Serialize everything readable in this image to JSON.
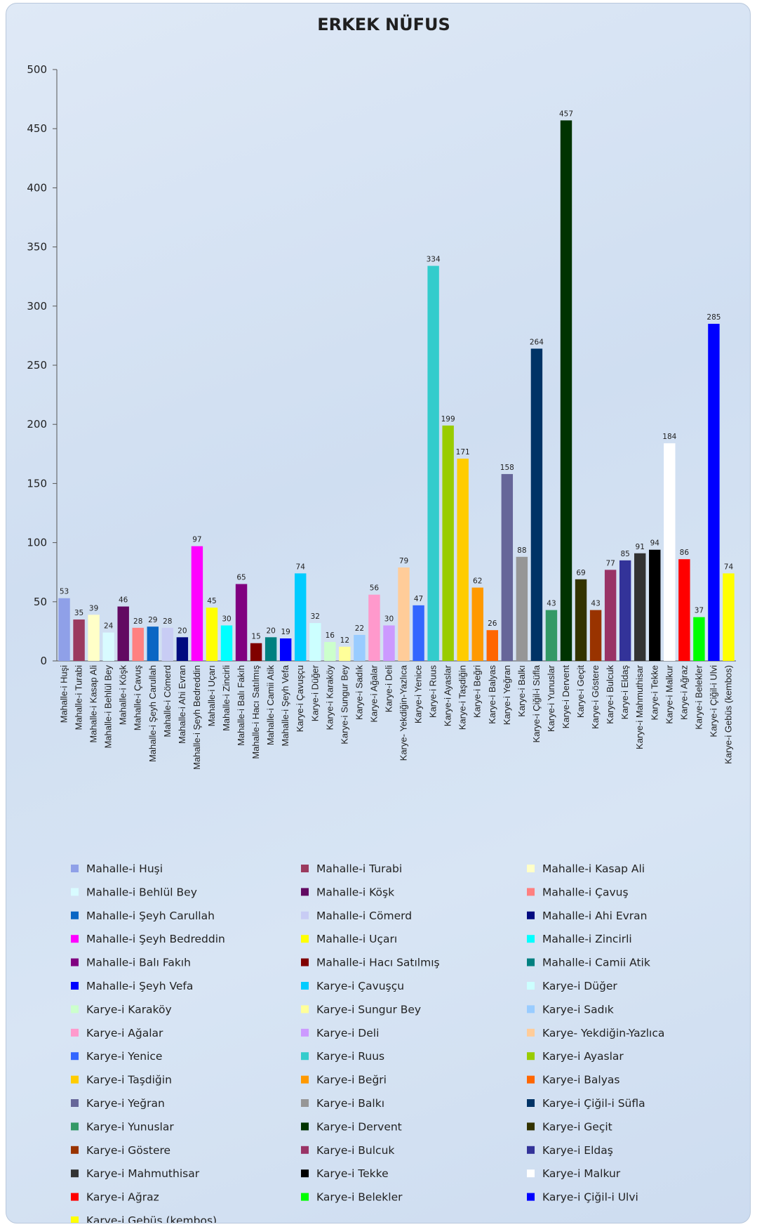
{
  "chart_data": {
    "type": "bar",
    "title": "ERKEK NÜFUS",
    "xlabel": "",
    "ylabel": "",
    "ylim": [
      0,
      500
    ],
    "yticks": [
      0,
      50,
      100,
      150,
      200,
      250,
      300,
      350,
      400,
      450,
      500
    ],
    "grid": false,
    "legend_position": "bottom",
    "categories": [
      "Mahalle-i Huşi",
      "Mahalle-i Turabi",
      "Mahalle-i Kasap Ali",
      "Mahalle-i Behlül Bey",
      "Mahalle-i Köşk",
      "Mahalle-i Çavuş",
      "Mahalle-i Şeyh Carullah",
      "Mahalle-i Cömerd",
      "Mahalle-i Ahi Evran",
      "Mahalle-i Şeyh Bedreddin",
      "Mahalle-i Uçarı",
      "Mahalle-i Zincirli",
      "Mahalle-i Balı Fakıh",
      "Mahalle-i Hacı Satılmış",
      "Mahalle-i Camii Atik",
      "Mahalle-i Şeyh Vefa",
      "Karye-i Çavuşçu",
      "Karye-i Düğer",
      "Karye-i Karaköy",
      "Karye-i Sungur Bey",
      "Karye-i Sadık",
      "Karye-i Ağalar",
      "Karye-i Deli",
      "Karye- Yekdiğin-Yazlıca",
      "Karye-i Yenice",
      "Karye-i Ruus",
      "Karye-i Ayaslar",
      "Karye-i Taşdiğin",
      "Karye-i Beğri",
      "Karye-i Balyas",
      "Karye-i Yeğran",
      "Karye-i Balkı",
      "Karye-i Çiğil-i Süfla",
      "Karye-i Yunuslar",
      "Karye-i Dervent",
      "Karye-i Geçit",
      "Karye-i Göstere",
      "Karye-i Bulcuk",
      "Karye-i Eldaş",
      "Karye-i Mahmuthisar",
      "Karye-i Tekke",
      "Karye-i Malkur",
      "Karye-i Ağraz",
      "Karye-i Belekler",
      "Karye-i Çiğil-i Ulvi",
      "Karye-i Gebüs (kembos)"
    ],
    "x_tick_labels": [
      "Mahalle-i Huşi",
      "Mahalle-i Turabi",
      "Mahalle-i Kasap Ali",
      "Mahalle-i Behlül Bey",
      "Mahalle-i Köşk",
      "Mahalle-i Çavuş",
      "Mahalle-i Şeyh Carullah",
      "Mahalle-i Cömerd",
      "Mahalle-i Ahi Evran",
      "Mahalle-i Şeyh Bedreddin",
      "Mahalle-i Uçarı",
      "Mahalle-i Zincirli",
      "Mahalle-i Balı Fakıh",
      "Mahalle-i Hacı Satılmış",
      "Mahalle-i Camii Atik",
      "Mahalle-i Şeyh Vefa",
      "Karye-i Çavuşçu",
      "Karye-i Düğer",
      "Karye-i Karaköy",
      "Karye-i Sungur Bey",
      "Karye-i Sadık",
      "Karye-i Ağalar",
      "Karye-i Deli",
      "Karye- Yekdiğin-Yazlıca",
      "Karye-i Yenice",
      "Karye-i Ruus",
      "Karye-i Ayaslar",
      "Karye-i Taşdiğin",
      "Karye-i Beğri",
      "Karye-i Balyas",
      "Karye-i Yeğran",
      "Karye-i Balkı",
      "Karye-i Çiğil-i Süfla",
      "Karye-i Yunuslar",
      "Karye-i Dervent",
      "Karye-i Geçit",
      "Karye-i Göstere",
      "Karye-i Bulcuk",
      "Karye-i Eldaş",
      "Karye-i Mahmuthisar",
      "Karye-i Tekke",
      "Karye-i Malkur",
      "Karye-i Ağraz",
      "Karye-i Belekler",
      "Karye-i Çiğil-i Ulvi",
      "Karye-i Gebüs (kembos)"
    ],
    "values": [
      53,
      35,
      39,
      24,
      46,
      28,
      29,
      28,
      20,
      97,
      45,
      30,
      65,
      15,
      20,
      19,
      74,
      32,
      16,
      12,
      22,
      56,
      30,
      79,
      47,
      334,
      199,
      171,
      62,
      26,
      158,
      88,
      264,
      43,
      457,
      69,
      43,
      77,
      85,
      91,
      94,
      184,
      86,
      37,
      285,
      74
    ],
    "data_labels": [
      "53",
      "35",
      "39",
      "24",
      "46",
      "28",
      "29",
      "28",
      "20",
      "97",
      "45",
      "30",
      "65",
      "15",
      "20",
      "19",
      "74",
      "32",
      "16",
      "12",
      "22",
      "56",
      "30",
      "79",
      "47",
      "334",
      "199",
      "171",
      "62",
      "26",
      "158",
      "88",
      "264",
      "43",
      "457",
      "69",
      "43",
      "77",
      "85",
      "91",
      "94",
      "184",
      "86",
      "37",
      "285",
      "74"
    ],
    "colors": [
      "#8fa0e8",
      "#9b3a5e",
      "#ffffc8",
      "#d8fbff",
      "#620a62",
      "#ff8080",
      "#0a66c4",
      "#c8ccf4",
      "#000a80",
      "#ff00ff",
      "#ffff00",
      "#00ffff",
      "#800080",
      "#800000",
      "#008080",
      "#0000ff",
      "#00ccff",
      "#ccffff",
      "#ccffcc",
      "#ffff99",
      "#99ccff",
      "#ff99cc",
      "#cc99ff",
      "#ffcc99",
      "#3366ff",
      "#33cccc",
      "#99cc00",
      "#ffcc00",
      "#ff9900",
      "#ff6600",
      "#666699",
      "#969696",
      "#003366",
      "#339966",
      "#003300",
      "#333300",
      "#993300",
      "#993366",
      "#333399",
      "#333333",
      "#000000",
      "#ffffff",
      "#ff0000",
      "#00ff00",
      "#0000ff",
      "#ffff00"
    ]
  }
}
